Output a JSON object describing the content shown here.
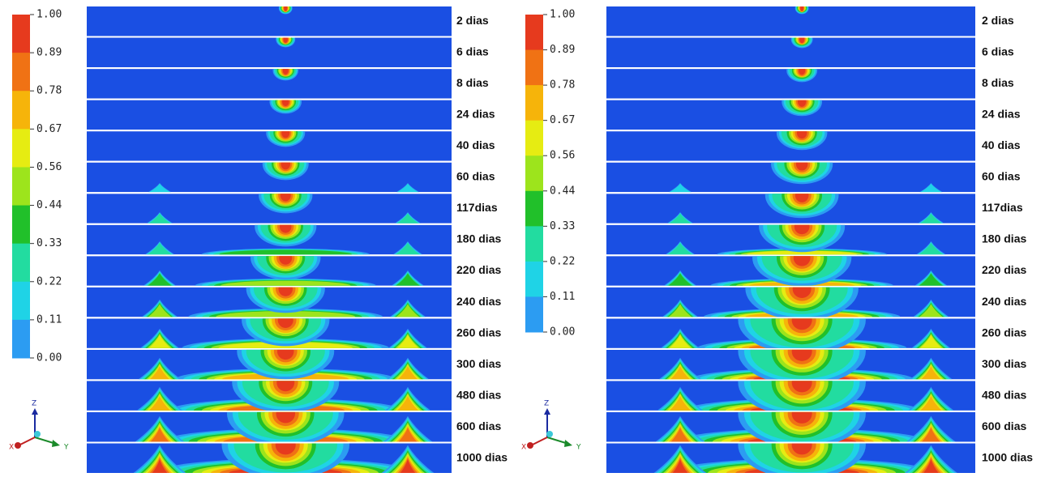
{
  "panels": [
    {
      "colorbar": [
        "1.00",
        "0.89",
        "0.78",
        "0.67",
        "0.56",
        "0.44",
        "0.33",
        "0.22",
        "0.11",
        "0.00"
      ],
      "strips": [
        "2 dias",
        "6 dias",
        "8 dias",
        "24 dias",
        "40 dias",
        "60 dias",
        "117dias",
        "180 dias",
        "220 dias",
        "240 dias",
        "260 dias",
        "300 dias",
        "480 dias",
        "600 dias",
        "1000 dias"
      ],
      "axes": [
        "Z",
        "X",
        "Y"
      ]
    },
    {
      "colorbar": [
        "1.00",
        "0.89",
        "0.78",
        "0.67",
        "0.56",
        "0.44",
        "0.33",
        "0.22",
        "0.11",
        "0.00"
      ],
      "strips": [
        "2 dias",
        "6 dias",
        "8 dias",
        "24 dias",
        "40 dias",
        "60 dias",
        "117dias",
        "180 dias",
        "220 dias",
        "240 dias",
        "260 dias",
        "300 dias",
        "480 dias",
        "600 dias",
        "1000 dias"
      ],
      "axes": [
        "Z",
        "X",
        "Y"
      ]
    }
  ]
}
